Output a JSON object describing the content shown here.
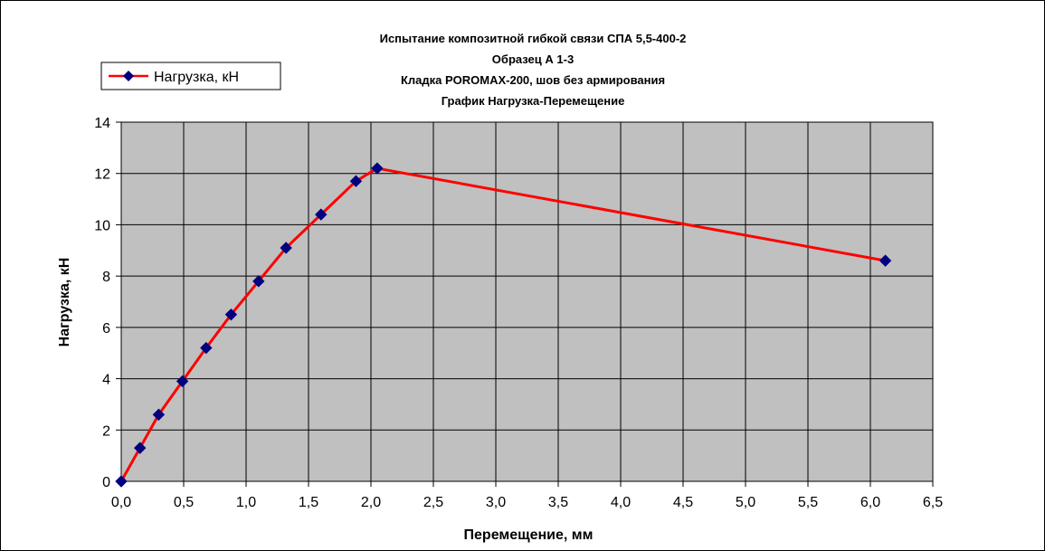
{
  "chart_data": {
    "type": "line",
    "title_lines": [
      "Испытание композитной гибкой связи СПА 5,5-400-2",
      "Образец А 1-3",
      "Кладка POROMAX-200, шов без армирования",
      "График Нагрузка-Перемещение"
    ],
    "xlabel": "Перемещение, мм",
    "ylabel": "Нагрузка, кН",
    "xlim": [
      0,
      6.5
    ],
    "ylim": [
      0,
      14
    ],
    "x_ticks": [
      0,
      0.5,
      1,
      1.5,
      2,
      2.5,
      3,
      3.5,
      4,
      4.5,
      5,
      5.5,
      6,
      6.5
    ],
    "x_tick_labels": [
      "0,0",
      "0,5",
      "1,0",
      "1,5",
      "2,0",
      "2,5",
      "3,0",
      "3,5",
      "4,0",
      "4,5",
      "5,0",
      "5,5",
      "6,0",
      "6,5"
    ],
    "y_ticks": [
      0,
      2,
      4,
      6,
      8,
      10,
      12,
      14
    ],
    "y_tick_labels": [
      "0",
      "2",
      "4",
      "6",
      "8",
      "10",
      "12",
      "14"
    ],
    "grid": true,
    "legend_position": "top-left",
    "plot_background": "#c0c0c0",
    "series": [
      {
        "name": "Нагрузка, кН",
        "color": "#ff0000",
        "marker_color": "#000080",
        "marker": "diamond",
        "x": [
          0,
          0.15,
          0.3,
          0.49,
          0.68,
          0.88,
          1.1,
          1.32,
          1.6,
          1.88,
          2.05,
          6.12
        ],
        "y": [
          0,
          1.3,
          2.6,
          3.9,
          5.2,
          6.5,
          7.8,
          9.1,
          10.4,
          11.7,
          12.2,
          8.6
        ]
      }
    ]
  }
}
